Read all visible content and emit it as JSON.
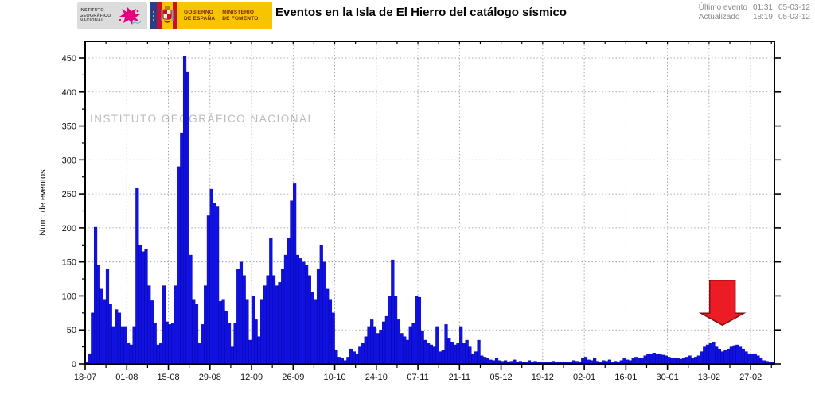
{
  "header": {
    "ign_logo": {
      "line1": "INSTITUTO",
      "line2": "GEOGRÁFICO",
      "line3": "NACIONAL"
    },
    "gov_logo": {
      "gobierno_line1": "GOBIERNO",
      "gobierno_line2": "DE ESPAÑA",
      "ministerio_line1": "MINISTERIO",
      "ministerio_line2": "DE FOMENTO"
    },
    "title": "Eventos en la Isla de El Hierro del catálogo sísmico",
    "meta": {
      "last_event_label": "Último evento",
      "last_event_time": "01:31",
      "last_event_date": "05-03-12",
      "updated_label": "Actualizado",
      "updated_time": "18:19",
      "updated_date": "05-03-12"
    }
  },
  "chart_data": {
    "type": "bar",
    "title": "Eventos en la Isla de El Hierro del catálogo sísmico",
    "ylabel": "Num. de eventos",
    "ylim": [
      0,
      474
    ],
    "yticks": [
      0,
      50,
      100,
      150,
      200,
      250,
      300,
      350,
      400,
      450
    ],
    "y_minor_step": 25,
    "grid": "dotted",
    "watermark": "INSTITUTO GEOGRÁFICO NACIONAL",
    "bar_color": "#1212e0",
    "bar_edge_color": "#0000a8",
    "x_start_date": "2011-07-18",
    "x_tick_labels": [
      "18-07",
      "01-08",
      "15-08",
      "29-08",
      "12-09",
      "26-09",
      "10-10",
      "24-10",
      "07-11",
      "21-11",
      "05-12",
      "19-12",
      "02-01",
      "16-01",
      "30-01",
      "13-02",
      "27-02"
    ],
    "x_major_step_days": 14,
    "x_minor_step_days": 7,
    "daily_values": [
      3,
      15,
      75,
      201,
      145,
      110,
      95,
      140,
      88,
      55,
      80,
      75,
      55,
      55,
      30,
      28,
      55,
      258,
      175,
      165,
      168,
      115,
      93,
      60,
      28,
      30,
      115,
      62,
      58,
      60,
      115,
      290,
      340,
      453,
      430,
      160,
      95,
      88,
      30,
      58,
      115,
      218,
      257,
      237,
      232,
      92,
      95,
      78,
      60,
      25,
      60,
      140,
      150,
      130,
      95,
      35,
      100,
      65,
      40,
      95,
      115,
      130,
      185,
      130,
      115,
      120,
      140,
      160,
      185,
      240,
      266,
      160,
      155,
      150,
      145,
      130,
      105,
      95,
      140,
      175,
      150,
      110,
      95,
      75,
      20,
      10,
      8,
      5,
      10,
      22,
      18,
      15,
      25,
      30,
      40,
      55,
      65,
      55,
      45,
      50,
      62,
      70,
      100,
      153,
      100,
      65,
      45,
      40,
      35,
      55,
      60,
      100,
      98,
      48,
      35,
      30,
      28,
      25,
      55,
      18,
      20,
      58,
      38,
      32,
      28,
      30,
      55,
      30,
      35,
      25,
      15,
      18,
      35,
      12,
      10,
      8,
      6,
      5,
      8,
      5,
      4,
      5,
      3,
      4,
      6,
      3,
      4,
      2,
      3,
      5,
      3,
      4,
      2,
      3,
      2,
      3,
      2,
      4,
      3,
      2,
      2,
      3,
      2,
      3,
      5,
      4,
      3,
      8,
      10,
      6,
      5,
      8,
      4,
      3,
      5,
      4,
      6,
      3,
      4,
      3,
      5,
      8,
      6,
      5,
      8,
      10,
      8,
      9,
      12,
      14,
      15,
      16,
      14,
      15,
      13,
      12,
      10,
      9,
      8,
      9,
      7,
      8,
      10,
      12,
      9,
      10,
      12,
      18,
      25,
      28,
      30,
      32,
      25,
      22,
      18,
      20,
      22,
      25,
      27,
      28,
      25,
      22,
      18,
      15,
      14,
      15,
      12,
      8,
      5,
      4,
      3,
      2
    ],
    "annotation_arrow": {
      "shape": "arrow-down",
      "date": "2012-02-17",
      "tail_value": 123,
      "tip_value": 57,
      "fill": "#ed1c24",
      "edge": "#7f0f12"
    }
  }
}
